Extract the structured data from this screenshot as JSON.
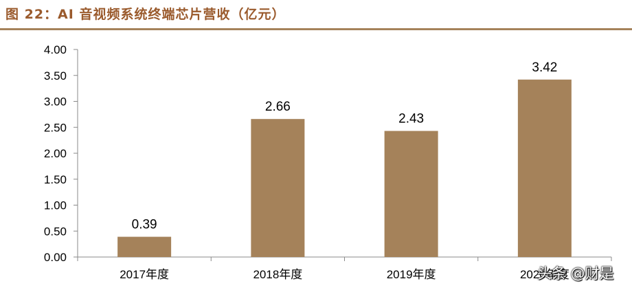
{
  "figure": {
    "title": "图 22：AI 音视频系统终端芯片营收（亿元）"
  },
  "watermark": {
    "text": "头条 @财是"
  },
  "colors": {
    "bar": "#a5825a",
    "title": "#9a5a2c",
    "rule": "#a5825a",
    "axis": "#888888"
  },
  "chart_data": {
    "type": "bar",
    "categories": [
      "2017年度",
      "2018年度",
      "2019年度",
      "2020年度"
    ],
    "values": [
      0.39,
      2.66,
      2.43,
      3.42
    ],
    "value_labels": [
      "0.39",
      "2.66",
      "2.43",
      "3.42"
    ],
    "title": "图 22：AI 音视频系统终端芯片营收（亿元）",
    "xlabel": "",
    "ylabel": "",
    "ylim": [
      0,
      4
    ],
    "yticks": [
      "0.00",
      "0.50",
      "1.00",
      "1.50",
      "2.00",
      "2.50",
      "3.00",
      "3.50",
      "4.00"
    ],
    "grid": false,
    "legend": "none"
  }
}
